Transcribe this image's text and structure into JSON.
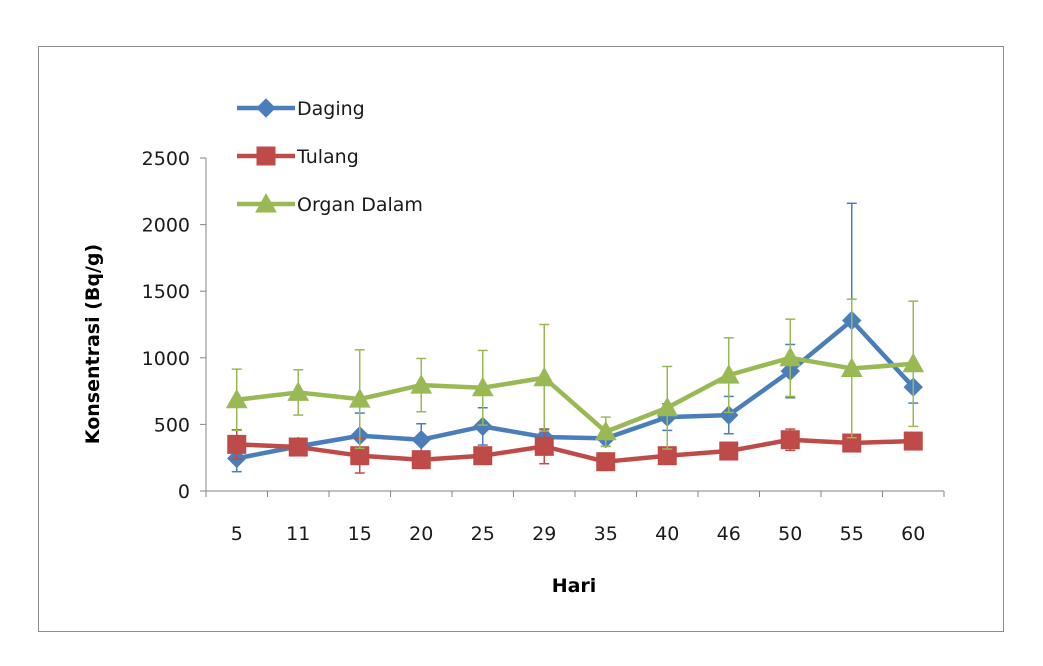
{
  "chart_data": {
    "type": "line",
    "title": "",
    "xlabel": "Hari",
    "ylabel": "Konsentrasi (Bq/g)",
    "categories": [
      "5",
      "11",
      "15",
      "20",
      "25",
      "29",
      "35",
      "40",
      "46",
      "50",
      "55",
      "60"
    ],
    "ylim": [
      0,
      2500
    ],
    "yticks": [
      0,
      500,
      1000,
      1500,
      2000,
      2500
    ],
    "ytick_labels": [
      "0",
      "500",
      "1000",
      "1500",
      "2000",
      "2500"
    ],
    "grid": false,
    "legend_position": "top-left",
    "series": [
      {
        "name": "Daging",
        "color": "#4a7ebb",
        "marker": "diamond",
        "values": [
          245,
          335,
          415,
          385,
          485,
          405,
          395,
          555,
          570,
          900,
          1280,
          780
        ],
        "error": [
          100,
          10,
          170,
          120,
          140,
          60,
          60,
          100,
          140,
          200,
          880,
          120
        ]
      },
      {
        "name": "Tulang",
        "color": "#be4b48",
        "marker": "square",
        "values": [
          350,
          330,
          265,
          235,
          265,
          335,
          220,
          265,
          300,
          385,
          360,
          375
        ],
        "error": [
          110,
          30,
          130,
          40,
          50,
          130,
          60,
          40,
          40,
          80,
          40,
          40
        ]
      },
      {
        "name": "Organ Dalam",
        "color": "#98b954",
        "marker": "triangle",
        "values": [
          685,
          740,
          690,
          795,
          775,
          850,
          445,
          625,
          870,
          1000,
          920,
          955
        ],
        "error": [
          230,
          170,
          370,
          200,
          280,
          400,
          110,
          310,
          280,
          290,
          520,
          470
        ]
      }
    ]
  }
}
